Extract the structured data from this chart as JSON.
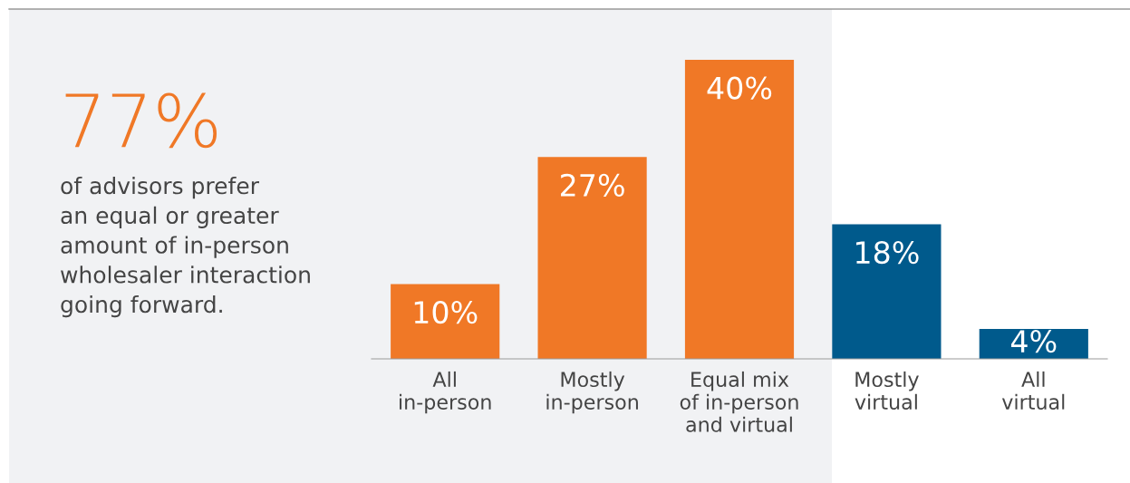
{
  "chart_data": {
    "type": "bar",
    "categories": [
      "All\nin-person",
      "Mostly\nin-person",
      "Equal mix\nof in-person\nand virtual",
      "Mostly\nvirtual",
      "All\nvirtual"
    ],
    "values": [
      10,
      27,
      40,
      18,
      4
    ],
    "colors": [
      "#f07826",
      "#f07826",
      "#f07826",
      "#005a8c",
      "#005a8c"
    ],
    "value_labels": [
      "10%",
      "27%",
      "40%",
      "18%",
      "4%"
    ],
    "annotations": [
      "77%",
      "of advisors prefer\nan equal or greater\namount of in-person\nwholesaler interaction\ngoing forward."
    ],
    "grid": false,
    "legend": false
  }
}
